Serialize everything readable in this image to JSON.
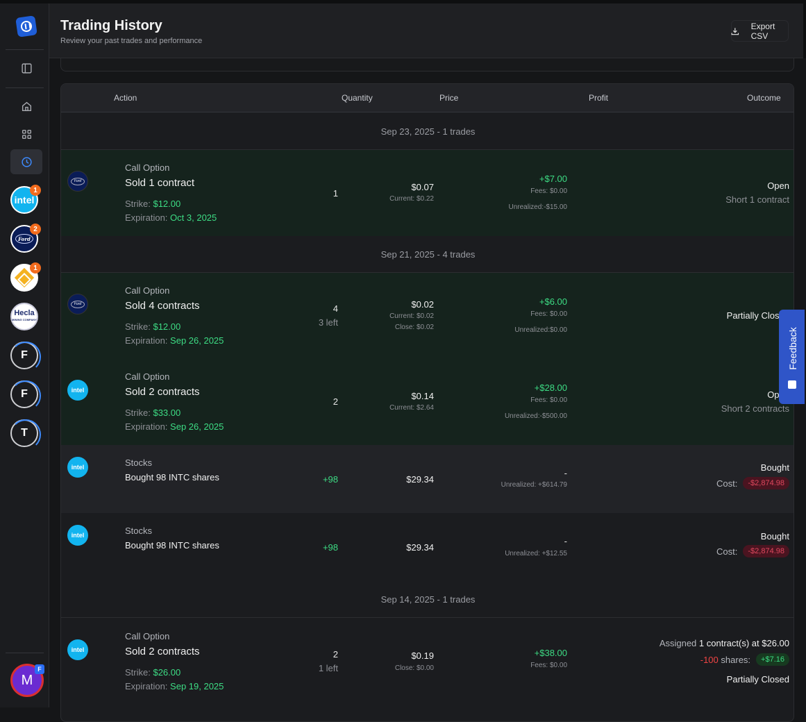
{
  "header": {
    "title": "Trading History",
    "subtitle": "Review your past trades and performance",
    "export_label": "Export CSV"
  },
  "sidebar": {
    "nav": [
      "sidebar-toggle-icon",
      "home-icon",
      "grid-icon",
      "history-icon"
    ],
    "accounts": [
      {
        "kind": "intel",
        "label": "intel",
        "badge": "1"
      },
      {
        "kind": "ford",
        "label": "Ford",
        "badge": "2"
      },
      {
        "kind": "diamond",
        "label": "",
        "badge": "1"
      },
      {
        "kind": "hecla",
        "label": "Hecla",
        "sub": "MINING COMPANY",
        "badge": ""
      },
      {
        "kind": "letter",
        "label": "F",
        "badge": ""
      },
      {
        "kind": "letter",
        "label": "F",
        "badge": ""
      },
      {
        "kind": "letter",
        "label": "T",
        "badge": ""
      }
    ],
    "user": {
      "initial": "M",
      "badge": "F"
    }
  },
  "table": {
    "columns": {
      "action": "Action",
      "quantity": "Quantity",
      "price": "Price",
      "profit": "Profit",
      "outcome": "Outcome"
    },
    "groups": [
      {
        "label": "Sep 23, 2025 - 1 trades"
      },
      {
        "label": "Sep 21, 2025 - 4 trades"
      },
      {
        "label": "Sep 14, 2025 - 1 trades"
      }
    ],
    "rows": [
      {
        "logo": "Ford",
        "kind": "Call Option",
        "action": "Sold 1 contract",
        "strike_label": "Strike:",
        "strike": "$12.00",
        "exp_label": "Expiration:",
        "exp": "Oct 3, 2025",
        "qty": "1",
        "price": "$0.07",
        "price_sub": "Current: $0.22",
        "profit": "+$7.00",
        "fees": "Fees: $0.00",
        "unrealized": "Unrealized:-$15.00",
        "outcome": "Open",
        "outcome_sub": "Short 1 contract"
      },
      {
        "logo": "Ford",
        "kind": "Call Option",
        "action": "Sold 4 contracts",
        "strike_label": "Strike:",
        "strike": "$12.00",
        "exp_label": "Expiration:",
        "exp": "Sep 26, 2025",
        "qty": "4",
        "qty_sub": "3 left",
        "price": "$0.02",
        "price_sub": "Current: $0.02",
        "price_sub2": "Close: $0.02",
        "profit": "+$6.00",
        "fees": "Fees: $0.00",
        "unrealized": "Unrealized:$0.00",
        "outcome": "Partially Closed"
      },
      {
        "logo": "intel",
        "kind": "Call Option",
        "action": "Sold 2 contracts",
        "strike_label": "Strike:",
        "strike": "$33.00",
        "exp_label": "Expiration:",
        "exp": "Sep 26, 2025",
        "qty": "2",
        "price": "$0.14",
        "price_sub": "Current: $2.64",
        "profit": "+$28.00",
        "fees": "Fees: $0.00",
        "unrealized": "Unrealized:-$500.00",
        "outcome": "Open",
        "outcome_sub": "Short 2 contracts"
      },
      {
        "logo": "intel",
        "kind": "Stocks",
        "action": "Bought 98 INTC shares",
        "qty": "+98",
        "price": "$29.34",
        "profit": "-",
        "unrealized": "Unrealized: +$614.79",
        "outcome": "Bought",
        "cost_label": "Cost:",
        "cost": "-$2,874.98"
      },
      {
        "logo": "intel",
        "kind": "Stocks",
        "action": "Bought 98 INTC shares",
        "qty": "+98",
        "price": "$29.34",
        "profit": "-",
        "unrealized": "Unrealized: +$12.55",
        "outcome": "Bought",
        "cost_label": "Cost:",
        "cost": "-$2,874.98"
      },
      {
        "logo": "intel",
        "kind": "Call Option",
        "action": "Sold 2 contracts",
        "strike_label": "Strike:",
        "strike": "$26.00",
        "exp_label": "Expiration:",
        "exp": "Sep 19, 2025",
        "qty": "2",
        "qty_sub": "1 left",
        "price": "$0.19",
        "price_sub": "Close: $0.00",
        "profit": "+$38.00",
        "fees": "Fees: $0.00",
        "assigned_prefix": "Assigned",
        "assigned_bold": "1 contract(s) at $26.00",
        "shares_neg": "-100",
        "shares_label": "shares:",
        "shares_pill": "+$7.16",
        "outcome": "Partially Closed"
      }
    ]
  },
  "feedback": {
    "label": "Feedback"
  }
}
